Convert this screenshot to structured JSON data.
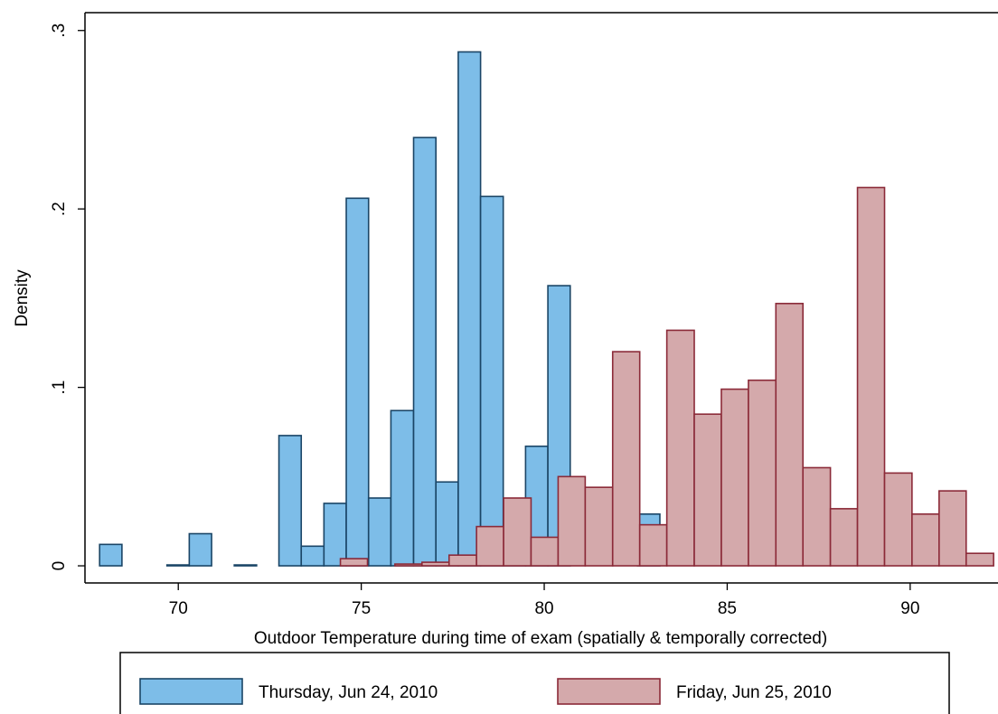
{
  "chart_data": {
    "type": "histogram",
    "xlabel": "Outdoor Temperature during time of exam (spatially & temporally corrected)",
    "ylabel": "Density",
    "xlim": [
      67.45,
      92.4
    ],
    "ylim": [
      -0.0096,
      0.31
    ],
    "xticks": [
      70,
      75,
      80,
      85,
      90
    ],
    "yticks": [
      {
        "value": 0,
        "label": "0"
      },
      {
        "value": 0.1,
        "label": ".1"
      },
      {
        "value": 0.2,
        "label": ".2"
      },
      {
        "value": 0.3,
        "label": ".3"
      }
    ],
    "grid": false,
    "legend": "bottom",
    "series": [
      {
        "name": "Thursday, Jun 24, 2010",
        "color": "#7dbde8",
        "edgecolor": "#1a4566",
        "bins": [
          67.85,
          68.46,
          69.07,
          69.69,
          70.3,
          70.91,
          71.53,
          72.14,
          72.75,
          73.36,
          73.98,
          74.59,
          75.2,
          75.81,
          76.43,
          77.04,
          77.65,
          78.26,
          78.88,
          79.49,
          80.1,
          80.71,
          81.33,
          81.94,
          82.55,
          83.16
        ],
        "values": [
          0.012,
          0,
          0,
          0.0005,
          0.018,
          0,
          0.0005,
          0,
          0.073,
          0.011,
          0.035,
          0.206,
          0.038,
          0.087,
          0.24,
          0.047,
          0.288,
          0.207,
          0.02,
          0.067,
          0.157,
          0,
          0,
          0,
          0.029
        ]
      },
      {
        "name": "Friday, Jun 25, 2010",
        "color": "#d4a9ab",
        "edgecolor": "#8b2a38",
        "bins": [
          74.43,
          75.17,
          75.92,
          76.66,
          77.4,
          78.15,
          78.89,
          79.64,
          80.38,
          81.12,
          81.87,
          82.61,
          83.35,
          84.1,
          84.84,
          85.58,
          86.33,
          87.07,
          87.82,
          88.56,
          89.3,
          90.05,
          90.79,
          91.53,
          92.28
        ],
        "values": [
          0.004,
          0,
          0.001,
          0.002,
          0.006,
          0.022,
          0.038,
          0.016,
          0.05,
          0.044,
          0.12,
          0.023,
          0.132,
          0.085,
          0.099,
          0.104,
          0.147,
          0.055,
          0.032,
          0.212,
          0.052,
          0.029,
          0.042,
          0.007
        ]
      }
    ]
  }
}
